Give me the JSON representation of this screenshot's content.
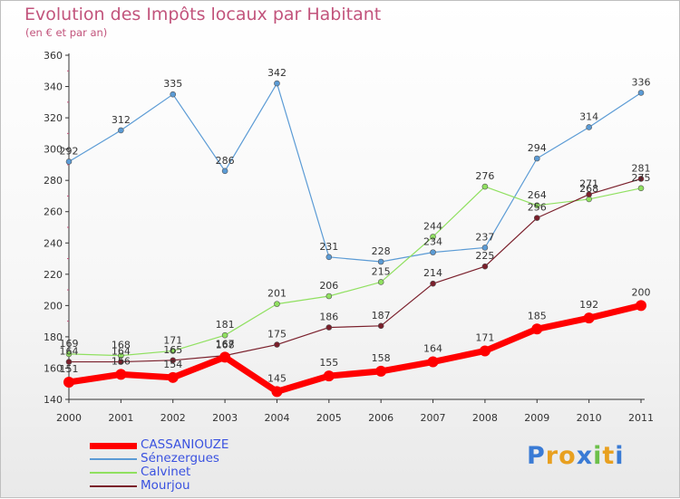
{
  "chart_data": {
    "type": "line",
    "title": "Evolution des Impôts locaux par Habitant",
    "subtitle": "(en € et par an)",
    "xlabel": "",
    "ylabel": "",
    "x": [
      "2000",
      "2001",
      "2002",
      "2003",
      "2004",
      "2005",
      "2006",
      "2007",
      "2008",
      "2009",
      "2010",
      "2011"
    ],
    "ylim": [
      140,
      360
    ],
    "yticks": [
      140,
      160,
      180,
      200,
      220,
      240,
      260,
      280,
      300,
      320,
      340,
      360
    ],
    "grid": false,
    "legend_position": "bottom-left",
    "series": [
      {
        "name": "CASSANIOUZE",
        "color": "#ff0000",
        "values": [
          151,
          156,
          154,
          167,
          145,
          155,
          158,
          164,
          171,
          185,
          192,
          200
        ]
      },
      {
        "name": "Sénezergues",
        "color": "#5b9bd5",
        "values": [
          292,
          312,
          335,
          286,
          342,
          231,
          228,
          234,
          237,
          294,
          314,
          336
        ]
      },
      {
        "name": "Calvinet",
        "color": "#90e060",
        "values": [
          169,
          168,
          171,
          181,
          201,
          206,
          215,
          244,
          276,
          264,
          268,
          275
        ]
      },
      {
        "name": "Mourjou",
        "color": "#7a1f2b",
        "values": [
          164,
          164,
          165,
          168,
          175,
          186,
          187,
          214,
          225,
          256,
          271,
          281
        ]
      }
    ]
  },
  "logo": {
    "letters": [
      "P",
      "r",
      "o",
      "x",
      "i",
      "t",
      "i"
    ],
    "colors": [
      "#3a7bd5",
      "#e8a020",
      "#e8a020",
      "#3a7bd5",
      "#6cc04a",
      "#e8a020",
      "#3a7bd5"
    ]
  }
}
